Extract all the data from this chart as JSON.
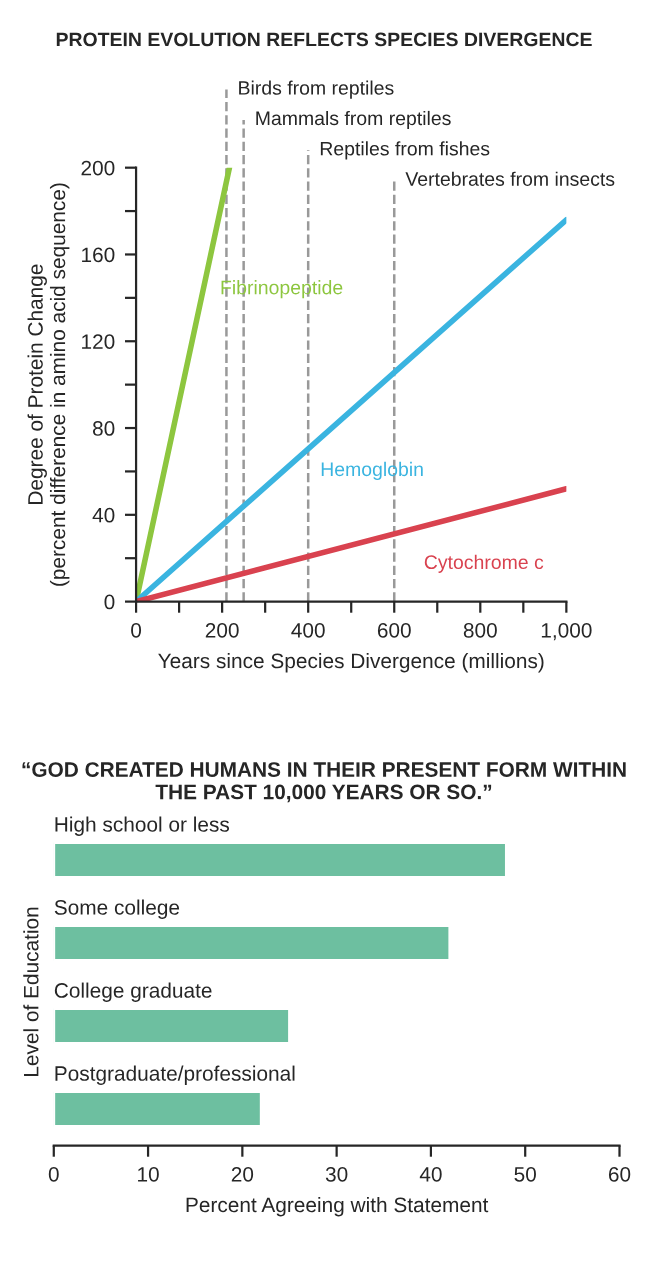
{
  "chart_data": [
    {
      "type": "line",
      "title": "PROTEIN EVOLUTION REFLECTS SPECIES DIVERGENCE",
      "xlabel": "Years since Species Divergence (millions)",
      "ylabel": "Degree of Protein Change\n(percent difference in amino acid sequence)",
      "series": [
        {
          "name": "Fibrinopeptide",
          "color": "#8dc63f",
          "x": [
            0,
            217
          ],
          "values": [
            0,
            200
          ]
        },
        {
          "name": "Hemoglobin",
          "color": "#3ab4e0",
          "x": [
            0,
            1000
          ],
          "values": [
            0,
            176
          ]
        },
        {
          "name": "Cytochrome c",
          "color": "#d9424f",
          "x": [
            0,
            1000
          ],
          "values": [
            0,
            52
          ]
        }
      ],
      "xlim": [
        0,
        1000
      ],
      "ylim": [
        0,
        200
      ],
      "xticks": [
        0,
        {
          "value": 100,
          "label": null
        },
        200,
        {
          "value": 300,
          "label": null
        },
        400,
        {
          "value": 500,
          "label": null
        },
        600,
        {
          "value": 700,
          "label": null
        },
        800,
        {
          "value": 900,
          "label": null
        },
        {
          "value": 1000,
          "label": "1,000"
        }
      ],
      "yticks": [
        0,
        {
          "value": 20,
          "label": null
        },
        40,
        {
          "value": 60,
          "label": null
        },
        80,
        {
          "value": 100,
          "label": null
        },
        120,
        {
          "value": 140,
          "label": null
        },
        160,
        {
          "value": 180,
          "label": null
        },
        200
      ],
      "ref_lines": [
        {
          "axis": "x",
          "value": 210,
          "label": "Birds from reptiles",
          "color": "#999999",
          "line_style": "dashed"
        },
        {
          "axis": "x",
          "value": 250,
          "label": "Mammals from reptiles",
          "color": "#999999",
          "line_style": "dashed"
        },
        {
          "axis": "x",
          "value": 400,
          "label": "Reptiles from fishes",
          "color": "#999999",
          "line_style": "dashed"
        },
        {
          "axis": "x",
          "value": 600,
          "label": "Vertebrates from insects",
          "color": "#999999",
          "line_style": "dashed"
        }
      ],
      "grid": false,
      "marker": "none",
      "line_style": "solid"
    },
    {
      "type": "bar",
      "orientation": "horizontal",
      "title": "“GOD CREATED HUMANS IN THEIR PRESENT FORM WITHIN THE PAST 10,000 YEARS OR SO.”",
      "xlabel": "Percent Agreeing with Statement",
      "ylabel": "Level of Education",
      "categories": [
        "High school or less",
        "Some college",
        "College graduate",
        "Postgraduate/professional"
      ],
      "values": [
        48,
        42,
        25,
        22
      ],
      "color": "#6dbfa0",
      "xlim": [
        0,
        60
      ],
      "xticks": [
        0,
        10,
        20,
        30,
        40,
        50,
        60
      ],
      "grid": false
    }
  ]
}
